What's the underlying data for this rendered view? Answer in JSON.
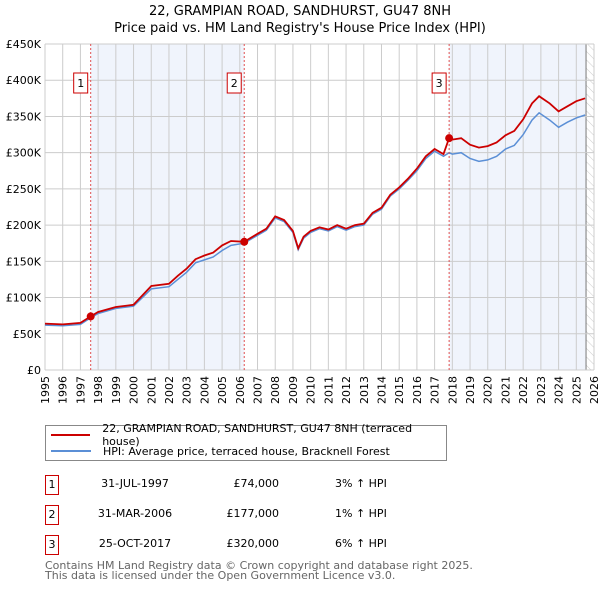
{
  "chart_data": {
    "type": "line",
    "title": "22, GRAMPIAN ROAD, SANDHURST, GU47 8NH",
    "subtitle": "Price paid vs. HM Land Registry's House Price Index (HPI)",
    "xlim": [
      1995,
      2026
    ],
    "ylim": [
      0,
      450000
    ],
    "x_ticks": [
      "1995",
      "1996",
      "1997",
      "1998",
      "1999",
      "2000",
      "2001",
      "2002",
      "2003",
      "2004",
      "2005",
      "2006",
      "2007",
      "2008",
      "2009",
      "2010",
      "2011",
      "2012",
      "2013",
      "2014",
      "2015",
      "2016",
      "2017",
      "2018",
      "2019",
      "2020",
      "2021",
      "2022",
      "2023",
      "2024",
      "2025",
      "2026"
    ],
    "y_ticks": [
      "£0",
      "£50K",
      "£100K",
      "£150K",
      "£200K",
      "£250K",
      "£300K",
      "£350K",
      "£400K",
      "£450K"
    ],
    "grid": true,
    "x": [
      1995,
      1996,
      1997,
      1997.58,
      1998,
      1999,
      2000,
      2000.5,
      2001,
      2002,
      2002.5,
      2003,
      2003.5,
      2004,
      2004.5,
      2005,
      2005.5,
      2006.25,
      2007,
      2007.5,
      2008,
      2008.5,
      2009,
      2009.3,
      2009.6,
      2010,
      2010.5,
      2011,
      2011.5,
      2012,
      2012.5,
      2013,
      2013.5,
      2014,
      2014.5,
      2015,
      2015.5,
      2016,
      2016.5,
      2017,
      2017.5,
      2017.82,
      2018,
      2018.5,
      2019,
      2019.5,
      2020,
      2020.5,
      2021,
      2021.5,
      2022,
      2022.5,
      2022.9,
      2023.5,
      2024,
      2024.5,
      2025,
      2025.5
    ],
    "series": [
      {
        "name": "22, GRAMPIAN ROAD, SANDHURST, GU47 8NH (terraced house)",
        "color": "#cc0000",
        "values": [
          64,
          63,
          65,
          74,
          80,
          87,
          90,
          103,
          116,
          119,
          130,
          140,
          153,
          158,
          162,
          172,
          178,
          177,
          188,
          195,
          212,
          207,
          192,
          168,
          184,
          192,
          197,
          194,
          200,
          195,
          200,
          202,
          217,
          224,
          242,
          252,
          264,
          278,
          295,
          305,
          298,
          320,
          318,
          320,
          311,
          307,
          309,
          314,
          324,
          330,
          346,
          368,
          378,
          368,
          357,
          364,
          371,
          375
        ]
      },
      {
        "name": "HPI: Average price, terraced house, Bracknell Forest",
        "color": "#5b8fd6",
        "values": [
          62,
          61,
          63,
          72,
          78,
          85,
          88,
          100,
          112,
          115,
          125,
          135,
          148,
          152,
          156,
          165,
          172,
          175,
          186,
          193,
          210,
          205,
          190,
          166,
          182,
          190,
          195,
          192,
          198,
          193,
          198,
          200,
          215,
          222,
          240,
          250,
          262,
          275,
          292,
          302,
          295,
          300,
          298,
          300,
          292,
          288,
          290,
          295,
          305,
          310,
          325,
          345,
          355,
          345,
          335,
          342,
          348,
          352
        ]
      }
    ],
    "value_unit": "thousand GBP",
    "sales": [
      {
        "label": "1",
        "x": 1997.58,
        "value": 74,
        "date": "31-JUL-1997",
        "price": "£74,000",
        "hpi": "3% ↑ HPI"
      },
      {
        "label": "2",
        "x": 2006.25,
        "value": 177,
        "date": "31-MAR-2006",
        "price": "£177,000",
        "hpi": "1% ↑ HPI"
      },
      {
        "label": "3",
        "x": 2017.82,
        "value": 320,
        "date": "25-OCT-2017",
        "price": "£320,000",
        "hpi": "6% ↑ HPI"
      }
    ],
    "shaded_ranges": [
      [
        1997.58,
        2006.25
      ],
      [
        2017.82,
        2025.55
      ]
    ],
    "hatched_from": 2025.55,
    "legend_placement": "bottom"
  },
  "footer": {
    "line1": "Contains HM Land Registry data © Crown copyright and database right 2025.",
    "line2": "This data is licensed under the Open Government Licence v3.0."
  }
}
